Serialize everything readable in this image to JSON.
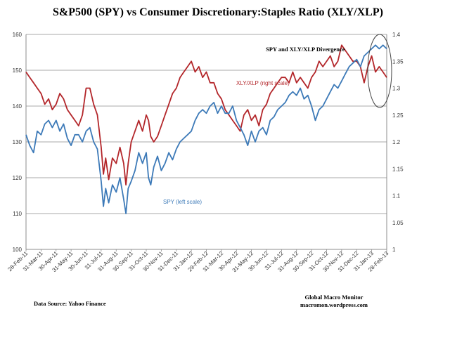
{
  "chart_data": {
    "type": "line",
    "title": "S&P500 (SPY) vs Consumer Discretionary:Staples Ratio (XLY/XLP)",
    "left_axis": {
      "min": 100,
      "max": 160,
      "ticks": [
        "100",
        "110",
        "120",
        "130",
        "140",
        "150",
        "160"
      ]
    },
    "right_axis": {
      "min": 1,
      "max": 1.4,
      "ticks": [
        "1",
        "1.05",
        "1.1",
        "1.15",
        "1.2",
        "1.25",
        "1.3",
        "1.35",
        "1.4"
      ]
    },
    "x_tick_labels": [
      "28-Feb-11",
      "31-Mar-11",
      "30-Apr-11",
      "31-May-11",
      "30-Jun-11",
      "31-Jul-11",
      "31-Aug-11",
      "30-Sep-11",
      "31-Oct-11",
      "30-Nov-11",
      "31-Dec-11",
      "31-Jan-12",
      "29-Feb-12",
      "31-Mar-12",
      "30-Apr-12",
      "31-May-12",
      "30-Jun-12",
      "31-Jul-12",
      "31-Aug-12",
      "30-Sep-12",
      "31-Oct-12",
      "30-Nov-12",
      "31-Dec-12",
      "31-Jan-13",
      "28-Feb-13"
    ],
    "series": [
      {
        "name": "SPY (left scale)",
        "axis": "left",
        "color": "#3d7ab8",
        "values": [
          [
            0,
            132
          ],
          [
            0.5,
            129
          ],
          [
            1,
            127
          ],
          [
            1.5,
            133
          ],
          [
            2,
            132
          ],
          [
            2.5,
            135
          ],
          [
            3,
            136
          ],
          [
            3.5,
            134
          ],
          [
            4,
            136
          ],
          [
            4.5,
            133
          ],
          [
            5,
            135
          ],
          [
            5.5,
            131
          ],
          [
            6,
            129
          ],
          [
            6.5,
            132
          ],
          [
            7,
            132
          ],
          [
            7.5,
            130
          ],
          [
            8,
            133
          ],
          [
            8.5,
            134
          ],
          [
            9,
            130
          ],
          [
            9.5,
            128
          ],
          [
            10,
            119
          ],
          [
            10.3,
            112
          ],
          [
            10.6,
            117
          ],
          [
            11,
            113
          ],
          [
            11.5,
            118
          ],
          [
            12,
            116
          ],
          [
            12.5,
            120
          ],
          [
            13,
            114
          ],
          [
            13.3,
            110
          ],
          [
            13.6,
            117
          ],
          [
            14,
            119
          ],
          [
            14.5,
            122
          ],
          [
            15,
            127
          ],
          [
            15.5,
            124
          ],
          [
            16,
            127
          ],
          [
            16.3,
            120
          ],
          [
            16.6,
            118
          ],
          [
            17,
            123
          ],
          [
            17.5,
            126
          ],
          [
            18,
            122
          ],
          [
            18.5,
            124
          ],
          [
            19,
            127
          ],
          [
            19.5,
            125
          ],
          [
            20,
            128
          ],
          [
            20.5,
            130
          ],
          [
            21,
            131
          ],
          [
            21.5,
            132
          ],
          [
            22,
            133
          ],
          [
            22.5,
            136
          ],
          [
            23,
            138
          ],
          [
            23.5,
            139
          ],
          [
            24,
            138
          ],
          [
            24.5,
            140
          ],
          [
            25,
            141
          ],
          [
            25.5,
            138
          ],
          [
            26,
            140
          ],
          [
            26.5,
            138
          ],
          [
            27,
            138
          ],
          [
            27.5,
            140
          ],
          [
            28,
            136
          ],
          [
            28.5,
            134
          ],
          [
            29,
            132
          ],
          [
            29.5,
            129
          ],
          [
            30,
            133
          ],
          [
            30.5,
            130
          ],
          [
            31,
            133
          ],
          [
            31.5,
            134
          ],
          [
            32,
            132
          ],
          [
            32.5,
            136
          ],
          [
            33,
            137
          ],
          [
            33.5,
            139
          ],
          [
            34,
            140
          ],
          [
            34.5,
            141
          ],
          [
            35,
            143
          ],
          [
            35.5,
            144
          ],
          [
            36,
            143
          ],
          [
            36.5,
            145
          ],
          [
            37,
            142
          ],
          [
            37.5,
            143
          ],
          [
            38,
            140
          ],
          [
            38.5,
            136
          ],
          [
            39,
            139
          ],
          [
            39.5,
            140
          ],
          [
            40,
            142
          ],
          [
            40.5,
            144
          ],
          [
            41,
            146
          ],
          [
            41.5,
            145
          ],
          [
            42,
            147
          ],
          [
            42.5,
            149
          ],
          [
            43,
            151
          ],
          [
            43.5,
            152
          ],
          [
            44,
            153
          ],
          [
            44.5,
            151
          ],
          [
            45,
            154
          ],
          [
            45.5,
            155
          ],
          [
            46,
            156
          ],
          [
            46.5,
            157
          ],
          [
            47,
            156
          ],
          [
            47.5,
            157
          ],
          [
            48,
            156
          ]
        ]
      },
      {
        "name": "XLY/XLP (right scale)",
        "axis": "right",
        "color": "#b3262a",
        "values": [
          [
            0,
            1.33
          ],
          [
            0.5,
            1.32
          ],
          [
            1,
            1.31
          ],
          [
            1.5,
            1.3
          ],
          [
            2,
            1.29
          ],
          [
            2.5,
            1.27
          ],
          [
            3,
            1.28
          ],
          [
            3.5,
            1.26
          ],
          [
            4,
            1.27
          ],
          [
            4.5,
            1.29
          ],
          [
            5,
            1.28
          ],
          [
            5.5,
            1.26
          ],
          [
            6,
            1.25
          ],
          [
            6.5,
            1.24
          ],
          [
            7,
            1.23
          ],
          [
            7.5,
            1.25
          ],
          [
            8,
            1.3
          ],
          [
            8.5,
            1.3
          ],
          [
            9,
            1.27
          ],
          [
            9.5,
            1.25
          ],
          [
            10,
            1.19
          ],
          [
            10.3,
            1.14
          ],
          [
            10.6,
            1.17
          ],
          [
            11,
            1.13
          ],
          [
            11.5,
            1.17
          ],
          [
            12,
            1.16
          ],
          [
            12.5,
            1.19
          ],
          [
            13,
            1.16
          ],
          [
            13.3,
            1.12
          ],
          [
            13.6,
            1.16
          ],
          [
            14,
            1.2
          ],
          [
            14.5,
            1.22
          ],
          [
            15,
            1.24
          ],
          [
            15.5,
            1.22
          ],
          [
            16,
            1.25
          ],
          [
            16.3,
            1.24
          ],
          [
            16.6,
            1.21
          ],
          [
            17,
            1.2
          ],
          [
            17.5,
            1.21
          ],
          [
            18,
            1.23
          ],
          [
            18.5,
            1.25
          ],
          [
            19,
            1.27
          ],
          [
            19.5,
            1.29
          ],
          [
            20,
            1.3
          ],
          [
            20.5,
            1.32
          ],
          [
            21,
            1.33
          ],
          [
            21.5,
            1.34
          ],
          [
            22,
            1.35
          ],
          [
            22.5,
            1.33
          ],
          [
            23,
            1.34
          ],
          [
            23.5,
            1.32
          ],
          [
            24,
            1.33
          ],
          [
            24.5,
            1.31
          ],
          [
            25,
            1.31
          ],
          [
            25.5,
            1.29
          ],
          [
            26,
            1.28
          ],
          [
            26.5,
            1.26
          ],
          [
            27,
            1.25
          ],
          [
            27.5,
            1.24
          ],
          [
            28,
            1.23
          ],
          [
            28.5,
            1.22
          ],
          [
            29,
            1.25
          ],
          [
            29.5,
            1.26
          ],
          [
            30,
            1.24
          ],
          [
            30.5,
            1.25
          ],
          [
            31,
            1.23
          ],
          [
            31.5,
            1.26
          ],
          [
            32,
            1.27
          ],
          [
            32.5,
            1.29
          ],
          [
            33,
            1.3
          ],
          [
            33.5,
            1.31
          ],
          [
            34,
            1.32
          ],
          [
            34.5,
            1.32
          ],
          [
            35,
            1.31
          ],
          [
            35.5,
            1.33
          ],
          [
            36,
            1.31
          ],
          [
            36.5,
            1.32
          ],
          [
            37,
            1.31
          ],
          [
            37.5,
            1.3
          ],
          [
            38,
            1.32
          ],
          [
            38.5,
            1.33
          ],
          [
            39,
            1.35
          ],
          [
            39.5,
            1.34
          ],
          [
            40,
            1.35
          ],
          [
            40.5,
            1.36
          ],
          [
            41,
            1.34
          ],
          [
            41.5,
            1.35
          ],
          [
            42,
            1.38
          ],
          [
            42.5,
            1.37
          ],
          [
            43,
            1.36
          ],
          [
            43.5,
            1.35
          ],
          [
            44,
            1.35
          ],
          [
            44.5,
            1.34
          ],
          [
            45,
            1.31
          ],
          [
            45.5,
            1.34
          ],
          [
            46,
            1.36
          ],
          [
            46.5,
            1.33
          ],
          [
            47,
            1.34
          ],
          [
            47.5,
            1.33
          ],
          [
            48,
            1.32
          ]
        ]
      }
    ],
    "annotations": {
      "divergence": "SPY and XLY/XLP  Divergence",
      "xly_label": "XLY/XLP (right scale)",
      "spy_label": "SPY (left scale)"
    }
  },
  "footer": {
    "source": "Data Source:  Yahoo Finance",
    "brand": "Global Macro Monitor",
    "site": "macromon.wordpress.com"
  }
}
